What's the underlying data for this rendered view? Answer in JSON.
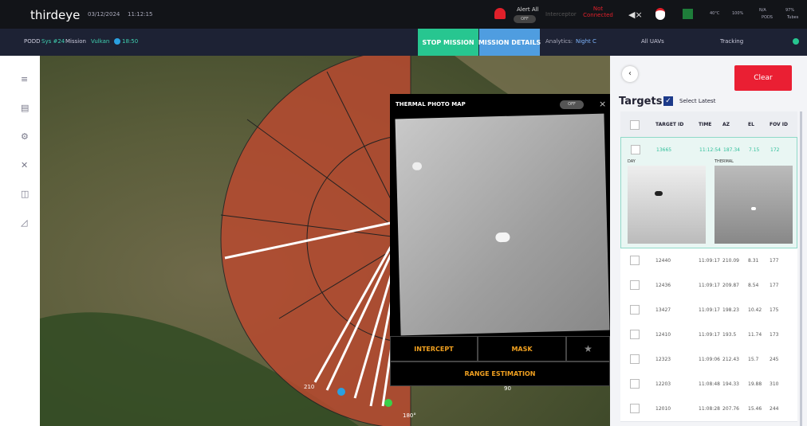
{
  "header": {
    "logo": "thirdeye",
    "date": "03/12/2024",
    "time": "11:12:15",
    "alert_label": "Alert All",
    "alert_toggle": "OFF",
    "interceptor": "Interceptor",
    "interceptor_status": "Not Connected",
    "temp": "40°C",
    "storage": "100%",
    "pods_value": "N/A",
    "pods_label": "PODS",
    "tubes_value": "97%",
    "tubes_label": "Tubes"
  },
  "mission_bar": {
    "pod": "PODD",
    "system": "Sys #24",
    "mission_label": "Mission",
    "mission": "Vulkan",
    "mission_time": "18:50",
    "stop": "STOP MISSION",
    "details": "MISSION DETAILS",
    "analytics_label": "Analytics:",
    "analytics_value": "Night C",
    "uavs": "All UAVs",
    "tracking": "Tracking"
  },
  "map": {
    "labels": [
      "210",
      "180°",
      "90"
    ]
  },
  "thermal_panel": {
    "title": "THERMAL PHOTO MAP",
    "toggle": "OFF",
    "intercept": "INTERCEPT",
    "mask": "MASK",
    "range": "RANGE ESTIMATION"
  },
  "targets": {
    "clear": "Clear",
    "title": "Targets",
    "select_latest": "Select Latest",
    "columns": [
      "TARGET ID",
      "TIME",
      "AZ",
      "EL",
      "FOV ID"
    ],
    "selected": {
      "cells": [
        "13665",
        "11:12:54",
        "187.34",
        "7.15",
        "172"
      ],
      "day": "DAY",
      "thermal": "THERMAL"
    },
    "rows": [
      [
        "12440",
        "11:09:17",
        "210.09",
        "8.31",
        "177"
      ],
      [
        "12436",
        "11:09:17",
        "209.87",
        "8.54",
        "177"
      ],
      [
        "13427",
        "11:09:17",
        "198.23",
        "10.42",
        "175"
      ],
      [
        "12410",
        "11:09:17",
        "193.5",
        "11.74",
        "173"
      ],
      [
        "12323",
        "11:09:06",
        "212.43",
        "15.7",
        "245"
      ],
      [
        "12203",
        "11:08:48",
        "194.33",
        "19.88",
        "310"
      ],
      [
        "12010",
        "11:08:28",
        "207.76",
        "15.46",
        "244"
      ]
    ]
  }
}
